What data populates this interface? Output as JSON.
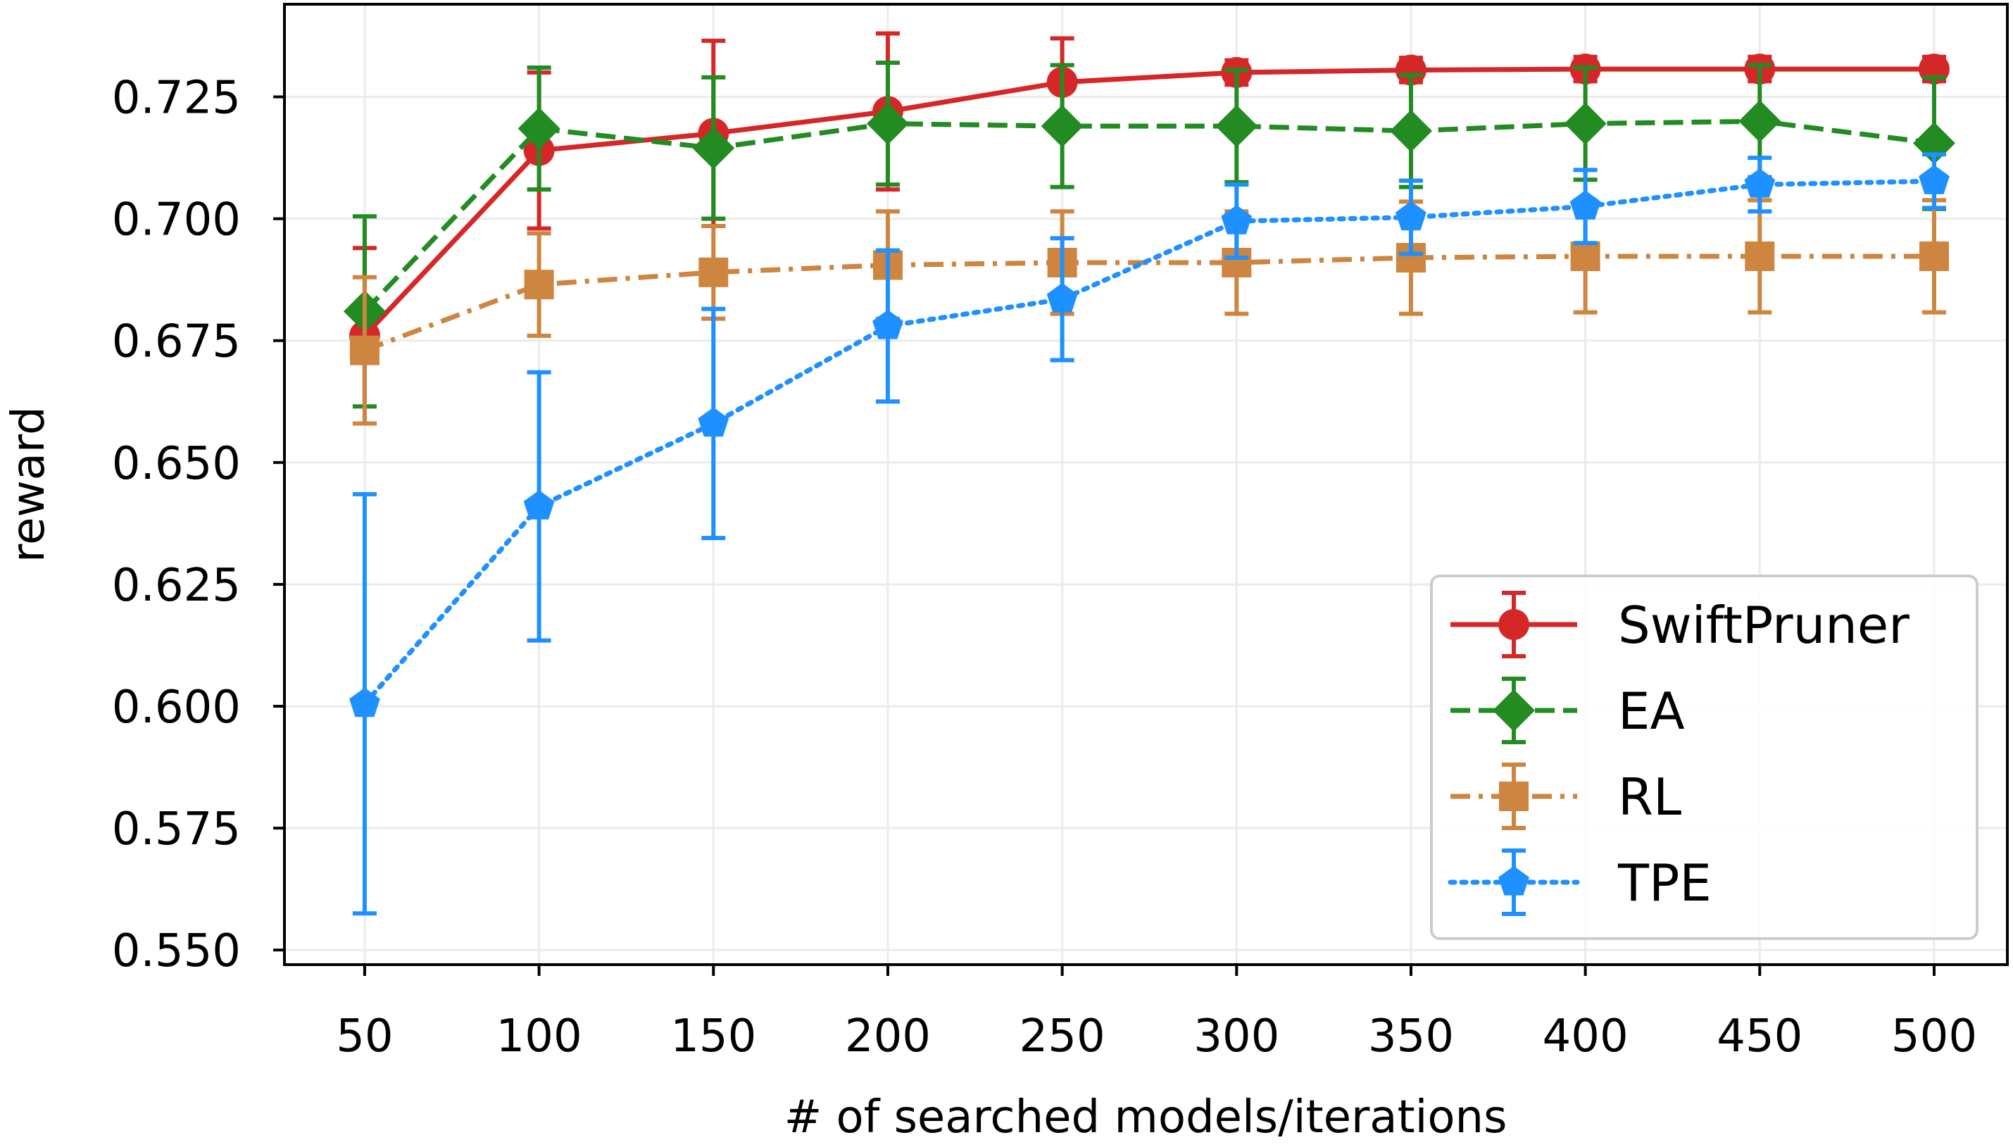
{
  "chart_data": {
    "type": "line",
    "x": [
      50,
      100,
      150,
      200,
      250,
      300,
      350,
      400,
      450,
      500
    ],
    "xticks": [
      "50",
      "100",
      "150",
      "200",
      "250",
      "300",
      "350",
      "400",
      "450",
      "500"
    ],
    "yticks": [
      "0.550",
      "0.575",
      "0.600",
      "0.625",
      "0.650",
      "0.675",
      "0.700",
      "0.725"
    ],
    "xlim": [
      27,
      521
    ],
    "ylim": [
      0.547,
      0.744
    ],
    "xlabel": "# of searched models/iterations",
    "ylabel": "reward",
    "grid": true,
    "legend_position": "lower-right",
    "series": [
      {
        "name": "SwiftPruner",
        "color": "#d62728",
        "linestyle": "solid",
        "marker": "circle",
        "values": [
          0.676,
          0.714,
          0.7175,
          0.722,
          0.728,
          0.73,
          0.7305,
          0.7307,
          0.7307,
          0.7307
        ],
        "err": [
          0.018,
          0.016,
          0.019,
          0.016,
          0.009,
          0.0025,
          0.0025,
          0.0025,
          0.0025,
          0.0025
        ]
      },
      {
        "name": "EA",
        "color": "#228b22",
        "linestyle": "dashed",
        "marker": "diamond",
        "values": [
          0.681,
          0.7185,
          0.7145,
          0.7195,
          0.719,
          0.719,
          0.718,
          0.7195,
          0.72,
          0.7155
        ],
        "err": [
          0.0195,
          0.0125,
          0.0145,
          0.0125,
          0.0125,
          0.0115,
          0.0115,
          0.0115,
          0.0115,
          0.0135
        ]
      },
      {
        "name": "RL",
        "color": "#cd853f",
        "linestyle": "dashdot",
        "marker": "square",
        "values": [
          0.673,
          0.6865,
          0.689,
          0.6905,
          0.691,
          0.691,
          0.692,
          0.6923,
          0.6923,
          0.6923
        ],
        "err": [
          0.015,
          0.0105,
          0.0095,
          0.011,
          0.0105,
          0.0105,
          0.0115,
          0.0115,
          0.0115,
          0.0115
        ]
      },
      {
        "name": "TPE",
        "color": "#1e90ff",
        "linestyle": "dotted",
        "marker": "pentagon",
        "values": [
          0.6005,
          0.641,
          0.658,
          0.678,
          0.6835,
          0.6995,
          0.7003,
          0.7025,
          0.707,
          0.7077
        ],
        "err": [
          0.043,
          0.0275,
          0.0235,
          0.0155,
          0.0125,
          0.0075,
          0.0075,
          0.0075,
          0.0055,
          0.0055
        ]
      }
    ]
  }
}
